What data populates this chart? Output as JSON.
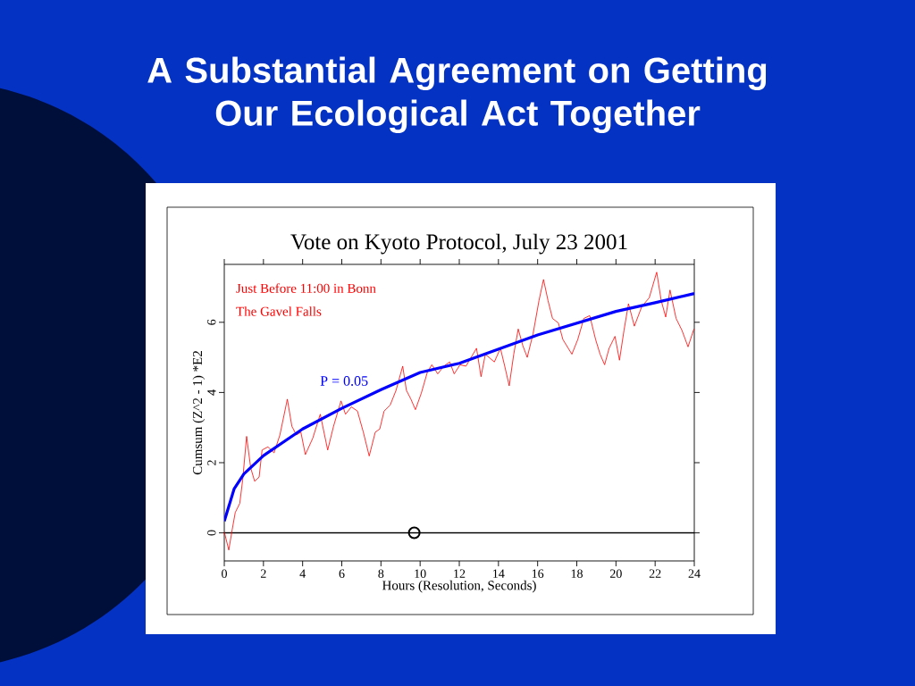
{
  "chart_data": {
    "type": "line",
    "title": "A Substantial Agreement on Getting Our Ecological Act Together",
    "subtitle": "Vote on Kyoto Protocol, July 23 2001",
    "xlabel": "Hours (Resolution, Seconds)",
    "ylabel": "Cumsum (Z^2 - 1) *E2",
    "annotations": [
      "Just Before 11:00 in Bonn",
      "The Gavel Falls"
    ],
    "xlim": [
      0,
      24
    ],
    "ylim": [
      -0.8,
      7.65
    ],
    "xticks": [
      0,
      2,
      4,
      6,
      8,
      10,
      12,
      14,
      16,
      18,
      20,
      22,
      24
    ],
    "yticks": [
      0,
      2,
      4,
      6
    ],
    "ref_lines": [
      {
        "axis": "y",
        "value": 0,
        "color": "#000000"
      }
    ],
    "series": [
      {
        "color": "#ff0000",
        "x": [
          0,
          0.23,
          0.41,
          0.56,
          0.79,
          0.94,
          1.14,
          1.35,
          1.55,
          1.78,
          1.93,
          2.23,
          2.54,
          2.84,
          3.22,
          3.45,
          3.68,
          3.91,
          4.14,
          4.52,
          4.9,
          5.28,
          5.58,
          5.96,
          6.19,
          6.49,
          6.8,
          7.1,
          7.4,
          7.71,
          7.94,
          8.16,
          8.47,
          8.77,
          9.11,
          9.3,
          9.53,
          9.76,
          10.06,
          10.37,
          10.6,
          10.9,
          11.21,
          11.51,
          11.74,
          12.04,
          12.34,
          12.88,
          13.11,
          13.33,
          13.79,
          14.1,
          14.32,
          14.55,
          14.78,
          15.01,
          15.24,
          15.47,
          15.77,
          16.07,
          16.3,
          16.53,
          16.76,
          17.06,
          17.29,
          17.75,
          18.05,
          18.36,
          18.66,
          18.96,
          19.19,
          19.42,
          19.65,
          19.95,
          20.18,
          20.41,
          20.64,
          20.94,
          21.32,
          21.7,
          22.08,
          22.31,
          22.54,
          22.76,
          23.07,
          23.37,
          23.68,
          23.98
        ],
        "values": [
          0.03,
          -0.49,
          0.11,
          0.58,
          0.84,
          1.51,
          2.75,
          1.85,
          1.47,
          1.59,
          2.36,
          2.45,
          2.28,
          2.79,
          3.81,
          3.04,
          2.79,
          2.87,
          2.23,
          2.7,
          3.38,
          2.36,
          3.04,
          3.76,
          3.38,
          3.59,
          3.47,
          2.87,
          2.19,
          2.87,
          2.96,
          3.47,
          3.64,
          4.06,
          4.75,
          4.06,
          3.81,
          3.51,
          3.98,
          4.58,
          4.79,
          4.53,
          4.75,
          4.87,
          4.53,
          4.79,
          4.75,
          5.26,
          4.45,
          5.09,
          4.87,
          5.26,
          4.75,
          4.19,
          5.09,
          5.81,
          5.34,
          5.0,
          5.68,
          6.62,
          7.22,
          6.62,
          6.11,
          5.98,
          5.51,
          5.09,
          5.51,
          6.11,
          6.19,
          5.51,
          5.09,
          4.79,
          5.26,
          5.6,
          4.92,
          5.77,
          6.53,
          5.89,
          6.45,
          6.7,
          7.43,
          6.62,
          6.15,
          6.92,
          6.11,
          5.77,
          5.3,
          5.81
        ]
      },
      {
        "name": "P = 0.05",
        "color": "#0000ff",
        "x": [
          0,
          0.5,
          1,
          2,
          4,
          6,
          8,
          10,
          12,
          16,
          20,
          22,
          24
        ],
        "values": [
          0.33,
          1.25,
          1.68,
          2.2,
          2.96,
          3.55,
          4.08,
          4.57,
          4.83,
          5.64,
          6.31,
          6.56,
          6.82
        ]
      },
      {
        "type": "scatter",
        "marker": "circle",
        "color": "#000000",
        "x": [
          9.7
        ],
        "values": [
          0
        ]
      }
    ]
  }
}
